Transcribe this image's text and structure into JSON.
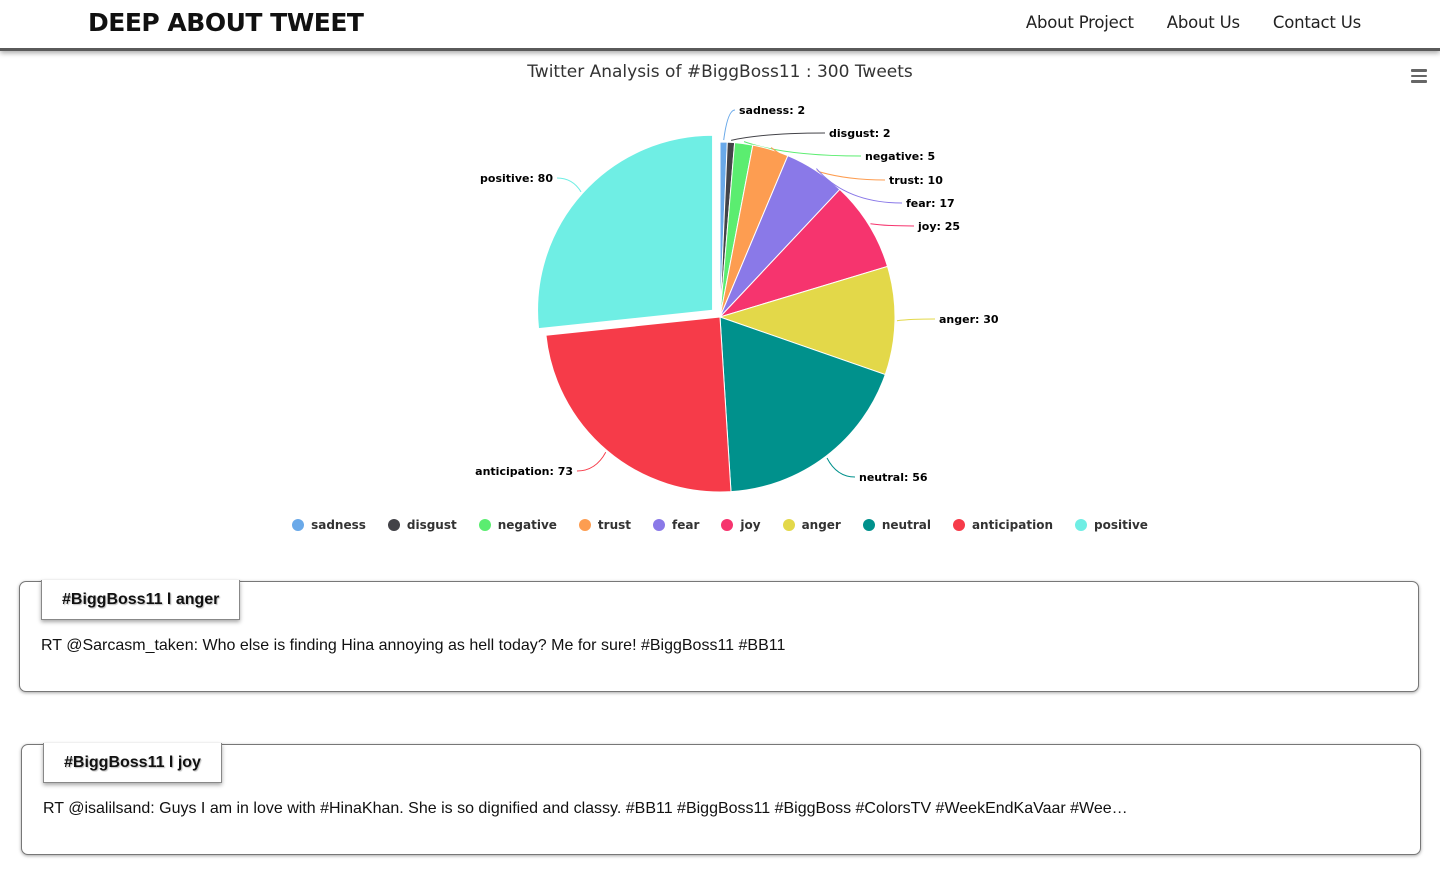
{
  "header": {
    "brand": "DEEP ABOUT TWEET",
    "nav": [
      "About Project",
      "About Us",
      "Contact Us"
    ]
  },
  "chart_data": {
    "type": "pie",
    "title": "Twitter Analysis of #BiggBoss11 : 300 Tweets",
    "categories": [
      "sadness",
      "disgust",
      "negative",
      "trust",
      "fear",
      "joy",
      "anger",
      "neutral",
      "anticipation",
      "positive"
    ],
    "values": [
      2,
      2,
      5,
      10,
      17,
      25,
      30,
      56,
      73,
      80
    ],
    "colors": [
      "#6aa9e9",
      "#434348",
      "#5bed70",
      "#fd9d51",
      "#8a79e8",
      "#f6346e",
      "#e3d849",
      "#00918c",
      "#f63b49",
      "#6feee4"
    ],
    "labels": [
      "sadness: 2",
      "disgust: 2",
      "negative: 5",
      "trust: 10",
      "fear: 17",
      "joy: 25",
      "anger: 30",
      "neutral: 56",
      "anticipation: 73",
      "positive: 80"
    ],
    "sliced": "positive",
    "legend_position": "bottom"
  },
  "tweets": [
    {
      "tag": "#BiggBoss11 l anger",
      "text": "RT @Sarcasm_taken: Who else is finding Hina annoying as hell today? Me for sure! #BiggBoss11 #BB11"
    },
    {
      "tag": "#BiggBoss11 l joy",
      "text": "RT @isalilsand: Guys I am in love with #HinaKhan. She is so dignified and classy. #BB11 #BiggBoss11 #BiggBoss #ColorsTV #WeekEndKaVaar #Wee…"
    }
  ]
}
